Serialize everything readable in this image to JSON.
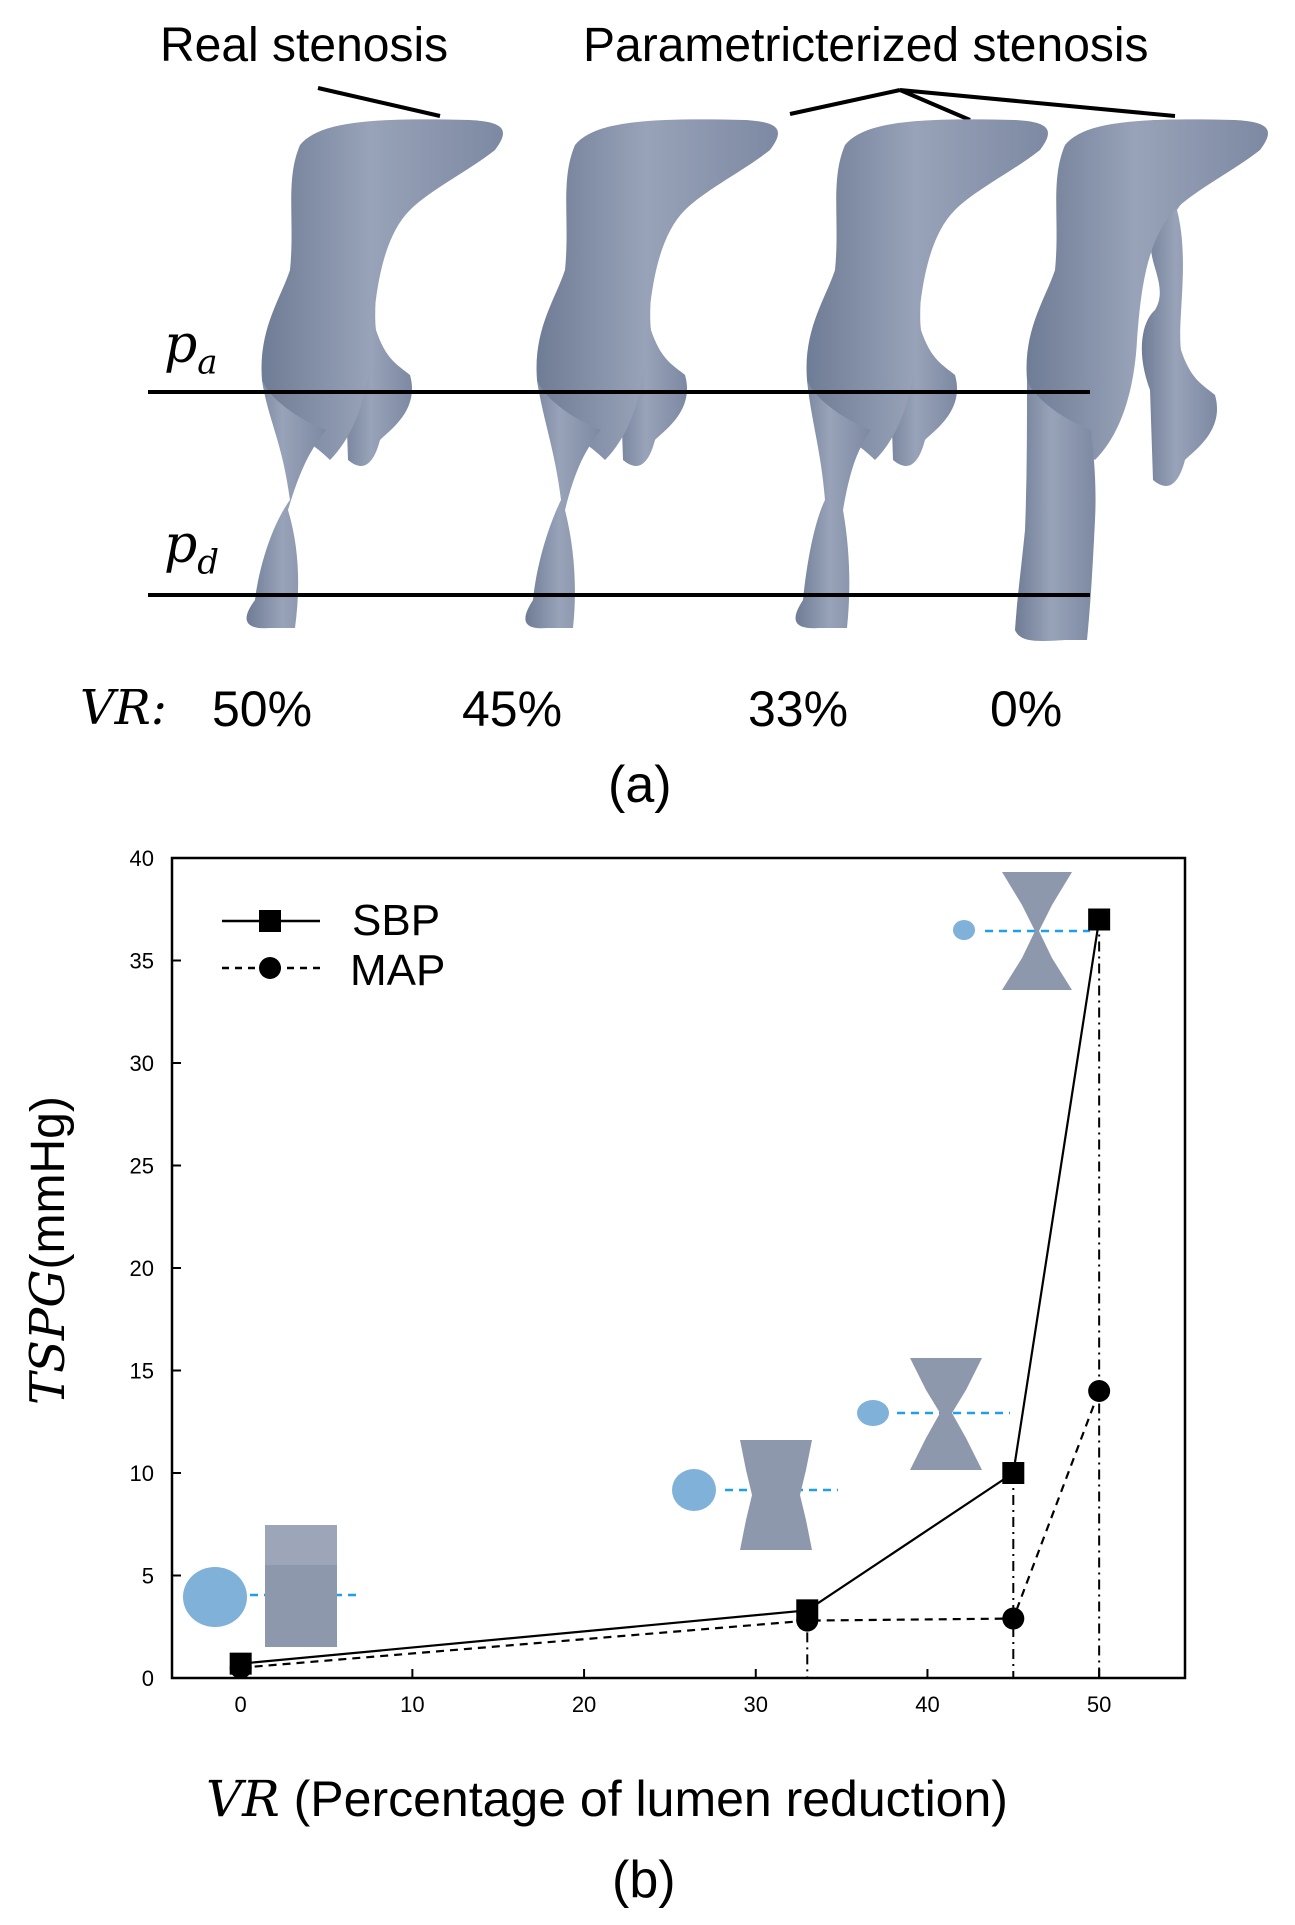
{
  "panel_a": {
    "label": "(a)",
    "real_label": "Real stenosis",
    "param_label": "Parametricterized stenosis",
    "pa_label": "p",
    "pa_sub": "a",
    "pd_label": "p",
    "pd_sub": "d",
    "vr_prefix": "VR:",
    "vr_values": [
      "50%",
      "45%",
      "33%",
      "0%"
    ],
    "vessel_color": "#8a96ad"
  },
  "panel_b": {
    "label": "(b)",
    "ylabel_math": "TSPG",
    "ylabel_unit": "(mmHg)",
    "xlabel_math": "VR",
    "xlabel_text": " (Percentage of lumen reduction)",
    "inset_blob_color": "#7fb1d9",
    "inset_line_color": "#1ea0e6"
  },
  "chart_data": {
    "type": "line",
    "xlabel": "VR (Percentage of lumen reduction)",
    "ylabel": "TSPG(mmHg)",
    "xlim": [
      -4,
      55
    ],
    "ylim": [
      0,
      40
    ],
    "x_ticks": [
      0,
      10,
      20,
      30,
      40,
      50
    ],
    "y_ticks": [
      0,
      5,
      10,
      15,
      20,
      25,
      30,
      35,
      40
    ],
    "legend_position": "top-left",
    "grid": false,
    "series": [
      {
        "name": "SBP",
        "marker": "square",
        "line": "solid",
        "x": [
          0,
          33,
          45,
          50
        ],
        "y": [
          0.7,
          3.3,
          10,
          37
        ]
      },
      {
        "name": "MAP",
        "marker": "circle",
        "line": "dashed",
        "x": [
          0,
          33,
          45,
          50
        ],
        "y": [
          0.5,
          2.8,
          2.9,
          14
        ]
      }
    ]
  }
}
